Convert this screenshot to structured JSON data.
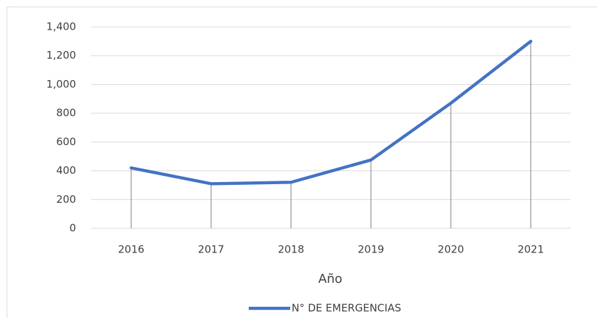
{
  "chart_data": {
    "type": "line",
    "x_label": "Año",
    "categories": [
      "2016",
      "2017",
      "2018",
      "2019",
      "2020",
      "2021"
    ],
    "series": [
      {
        "name": "N° DE EMERGENCIAS",
        "color": "#4472c4",
        "values": [
          420,
          310,
          320,
          475,
          870,
          1300
        ]
      }
    ],
    "ylim": [
      0,
      1400
    ],
    "yticks": [
      0,
      200,
      400,
      600,
      800,
      {
        "value": 1000,
        "label": "1,000"
      },
      {
        "value": 1200,
        "label": "1,200"
      },
      {
        "value": 1400,
        "label": "1,400"
      }
    ],
    "grid": true,
    "drop_lines": true,
    "legend": "bottom"
  }
}
